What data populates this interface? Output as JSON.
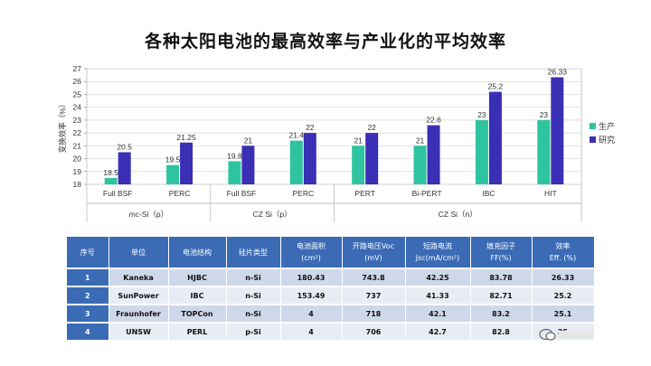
{
  "slide": {
    "title": "各种太阳电池的最高效率与产业化的平均效率"
  },
  "chart_data": {
    "type": "bar",
    "ylabel": "变换效率（%）",
    "ylim": [
      18,
      27
    ],
    "yticks": [
      18,
      19,
      20,
      21,
      22,
      23,
      24,
      25,
      26,
      27
    ],
    "grid": true,
    "legend_position": "right",
    "categories": [
      "Full BSF",
      "PERC",
      "Full BSF",
      "PERC",
      "PERT",
      "Bi-PERT",
      "IBC",
      "HIT"
    ],
    "groups": [
      {
        "label": "mc-Si（p）",
        "start": 0,
        "end": 2
      },
      {
        "label": "CZ Si（p）",
        "start": 2,
        "end": 4
      },
      {
        "label": "CZ Si（n）",
        "start": 4,
        "end": 8
      }
    ],
    "series": [
      {
        "name": "生产",
        "color": "#2ec4a0",
        "values": [
          18.5,
          19.5,
          19.8,
          21.4,
          21,
          21,
          23,
          23
        ],
        "labels": [
          "18.5",
          "19.5",
          "19.8",
          "21.4",
          "21",
          "21",
          "23",
          "23"
        ]
      },
      {
        "name": "研究",
        "color": "#3a2fb5",
        "values": [
          20.5,
          21.25,
          21,
          22,
          22,
          22.6,
          25.2,
          26.33
        ],
        "labels": [
          "20.5",
          "21.25",
          "21",
          "22",
          "22",
          "22.6",
          "25.2",
          "26.33"
        ]
      }
    ]
  },
  "table": {
    "headers": [
      [
        "序号"
      ],
      [
        "单位"
      ],
      [
        "电池结构"
      ],
      [
        "硅片类型"
      ],
      [
        "电池面积",
        "(cm²)"
      ],
      [
        "开路电压Voc",
        "(mV)"
      ],
      [
        "短路电流",
        "Jsc(mA/cm²)"
      ],
      [
        "填充因子",
        "FF(%)"
      ],
      [
        "效率",
        "Eff. (%)"
      ]
    ],
    "rows": [
      [
        "1",
        "Kaneka",
        "HJBC",
        "n-Si",
        "180.43",
        "743.8",
        "42.25",
        "83.78",
        "26.33"
      ],
      [
        "2",
        "SunPower",
        "IBC",
        "n-Si",
        "153.49",
        "737",
        "41.33",
        "82.71",
        "25.2"
      ],
      [
        "3",
        "Fraunhofer",
        "TOPCon",
        "n-Si",
        "4",
        "718",
        "42.1",
        "83.2",
        "25.1"
      ],
      [
        "4",
        "UNSW",
        "PERL",
        "p-Si",
        "4",
        "706",
        "42.7",
        "82.8",
        "25"
      ]
    ]
  },
  "watermark": {
    "icon": "wechat-icon"
  }
}
